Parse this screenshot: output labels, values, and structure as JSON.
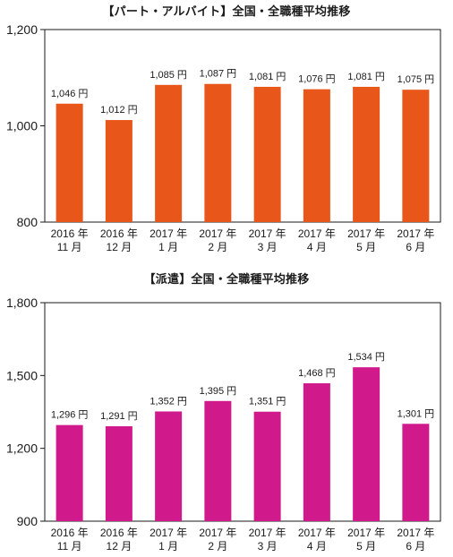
{
  "chart_data": [
    {
      "type": "bar",
      "title": "【パート・アルバイト】全国・全職種平均推移",
      "categories": [
        [
          "2016 年",
          "11 月"
        ],
        [
          "2016 年",
          "12 月"
        ],
        [
          "2017 年",
          "1 月"
        ],
        [
          "2017 年",
          "2 月"
        ],
        [
          "2017 年",
          "3 月"
        ],
        [
          "2017 年",
          "4 月"
        ],
        [
          "2017 年",
          "5 月"
        ],
        [
          "2017 年",
          "6 月"
        ]
      ],
      "values": [
        1046,
        1012,
        1085,
        1087,
        1081,
        1076,
        1081,
        1075
      ],
      "data_labels": [
        "1,046 円",
        "1,012 円",
        "1,085 円",
        "1,087 円",
        "1,081 円",
        "1,076 円",
        "1,081 円",
        "1,075 円"
      ],
      "yticks": [
        800,
        1000,
        1200
      ],
      "ytick_labels": [
        "800",
        "1,000",
        "1,200"
      ],
      "ylim": [
        800,
        1200
      ],
      "color": "#e8561a"
    },
    {
      "type": "bar",
      "title": "【派遣】全国・全職種平均推移",
      "categories": [
        [
          "2016 年",
          "11 月"
        ],
        [
          "2016 年",
          "12 月"
        ],
        [
          "2017 年",
          "1 月"
        ],
        [
          "2017 年",
          "2 月"
        ],
        [
          "2017 年",
          "3 月"
        ],
        [
          "2017 年",
          "4 月"
        ],
        [
          "2017 年",
          "5 月"
        ],
        [
          "2017 年",
          "6 月"
        ]
      ],
      "values": [
        1296,
        1291,
        1352,
        1395,
        1351,
        1468,
        1534,
        1301
      ],
      "data_labels": [
        "1,296 円",
        "1,291 円",
        "1,352 円",
        "1,395 円",
        "1,351 円",
        "1,468 円",
        "1,534 円",
        "1,301 円"
      ],
      "yticks": [
        900,
        1200,
        1500,
        1800
      ],
      "ytick_labels": [
        "900",
        "1,200",
        "1,500",
        "1,800"
      ],
      "ylim": [
        900,
        1800
      ],
      "color": "#d01a8c"
    }
  ]
}
